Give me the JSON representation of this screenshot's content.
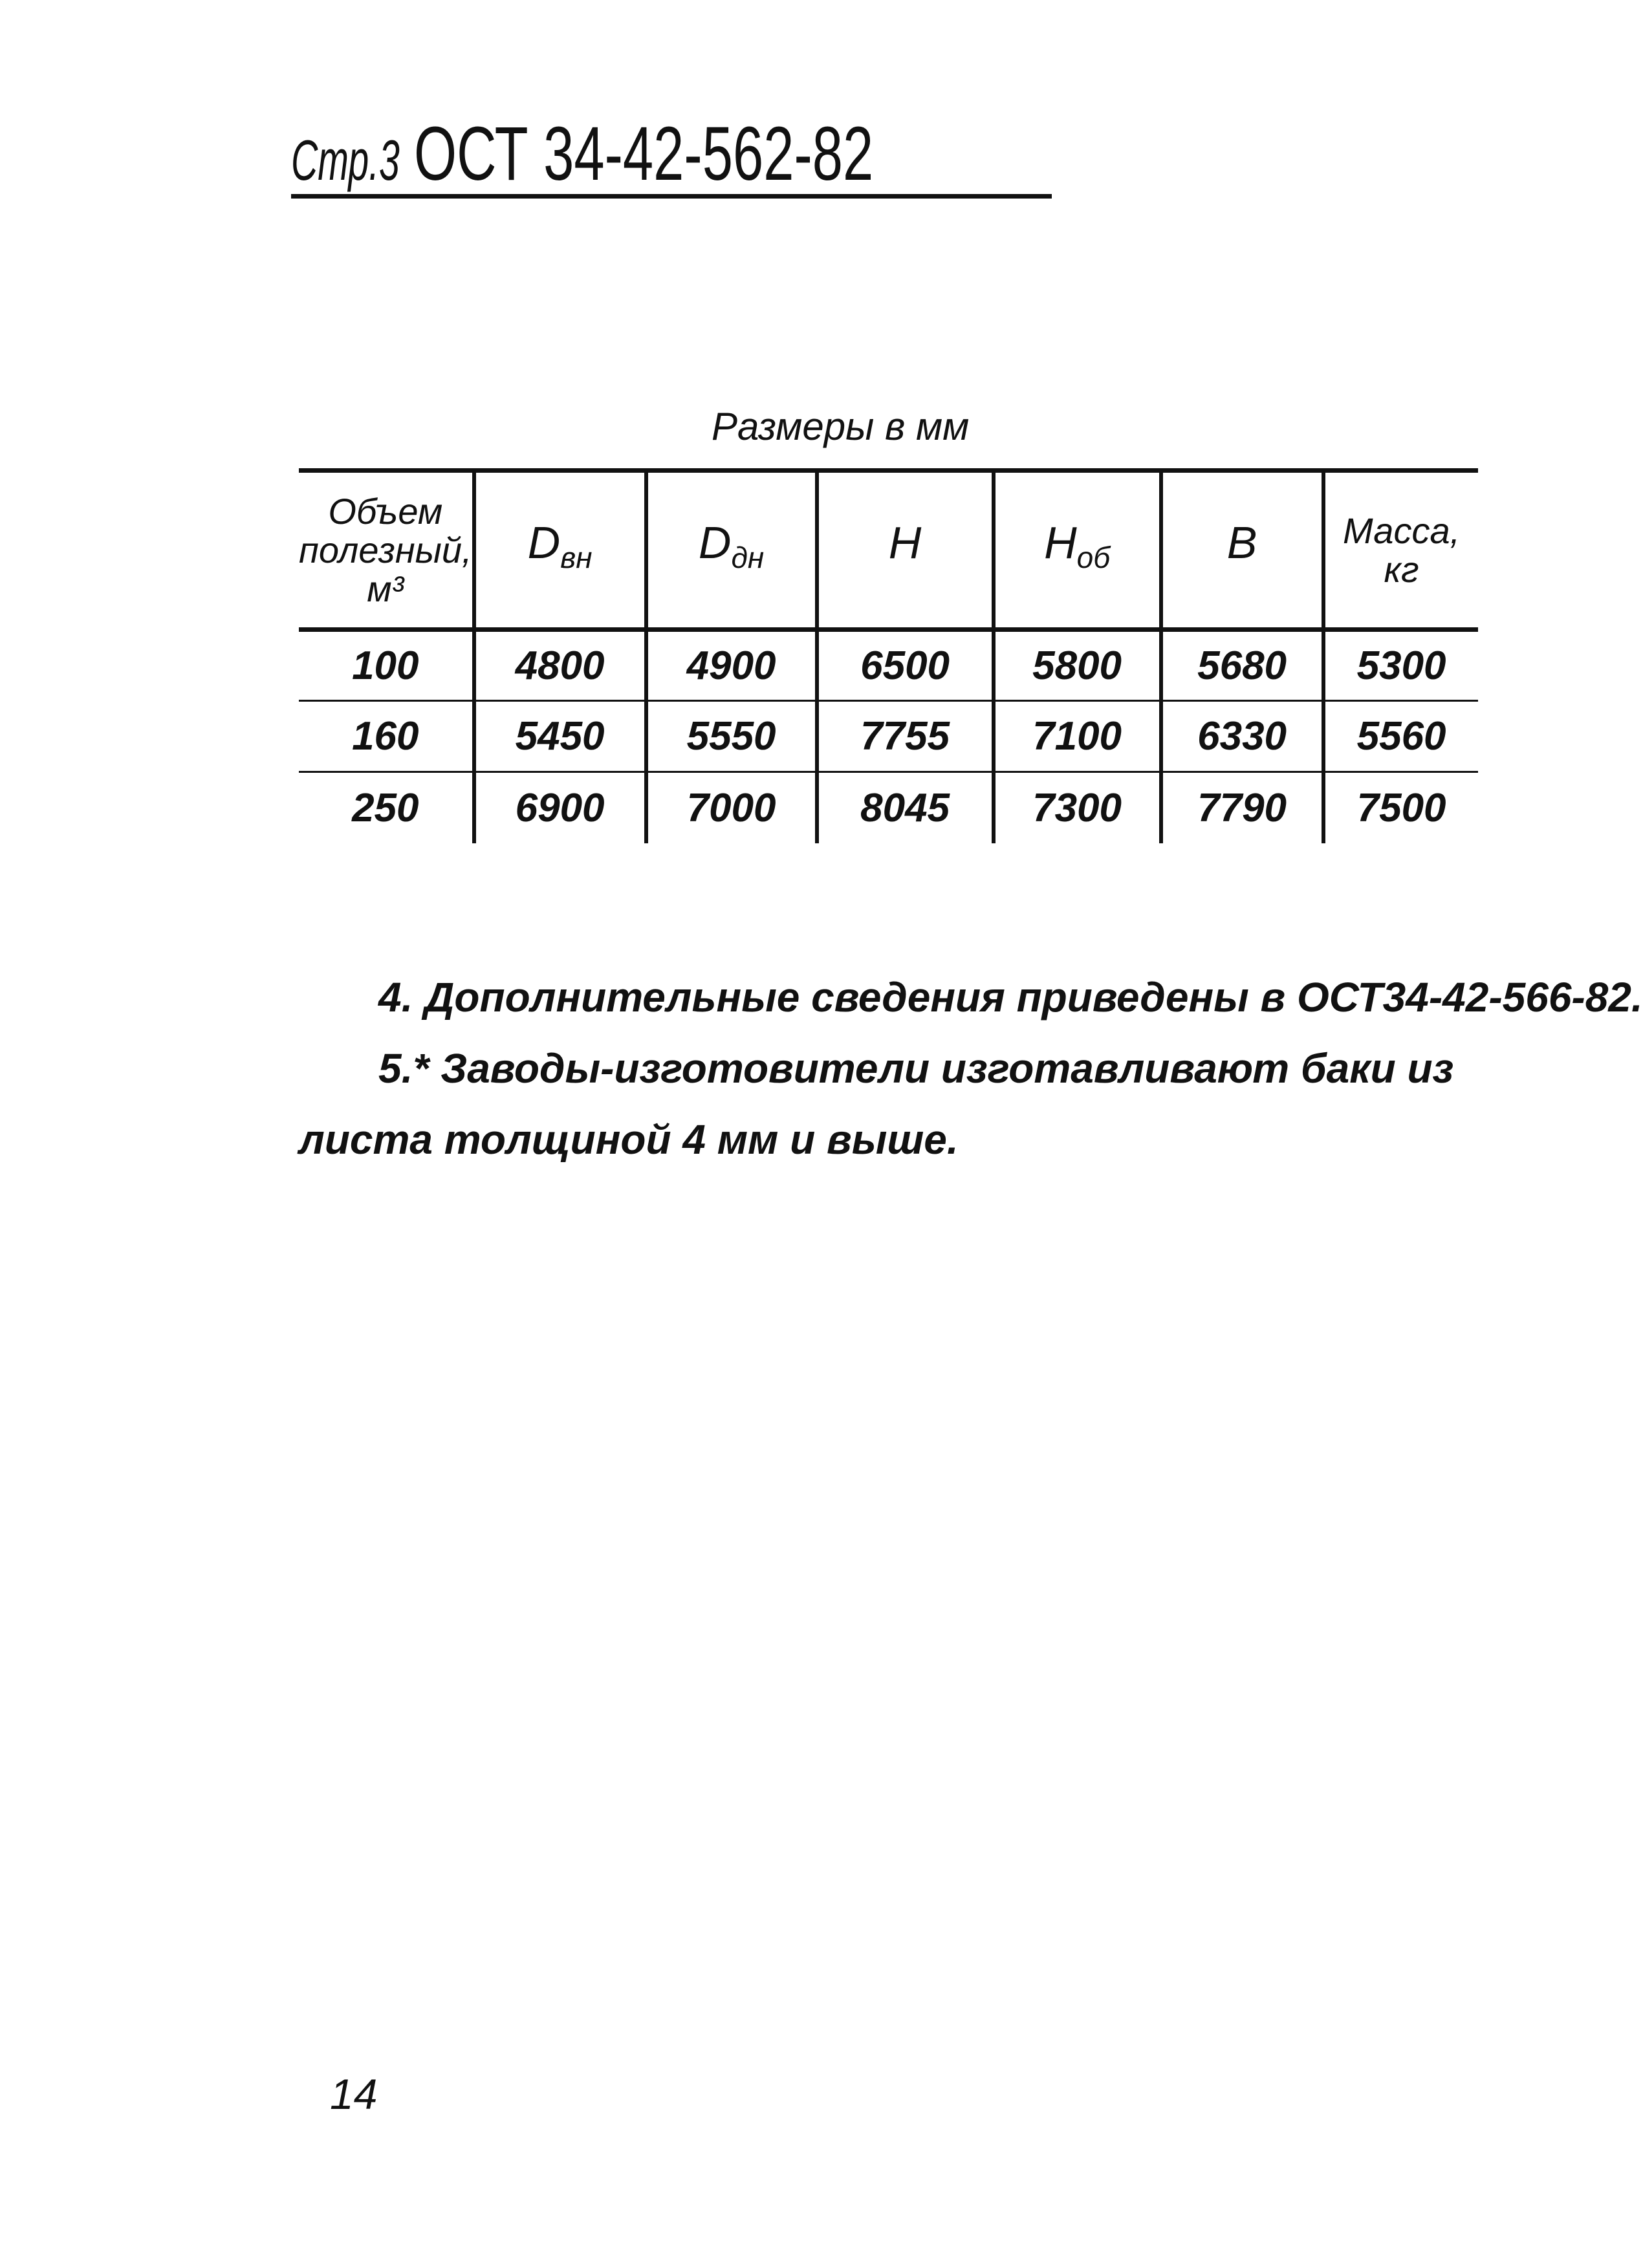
{
  "header": {
    "page_label": "Стр.3",
    "standard_code": "ОСТ 34-42-562-82"
  },
  "table": {
    "units_caption": "Размеры в мм",
    "columns": [
      {
        "label": "Объем полезный, м³"
      },
      {
        "symbol": "D",
        "sub": "вн"
      },
      {
        "symbol": "D",
        "sub": "дн"
      },
      {
        "symbol": "H",
        "sub": ""
      },
      {
        "symbol": "H",
        "sub": "об"
      },
      {
        "symbol": "B",
        "sub": ""
      },
      {
        "label": "Масса, кг"
      }
    ],
    "rows": [
      [
        "100",
        "4800",
        "4900",
        "6500",
        "5800",
        "5680",
        "5300"
      ],
      [
        "160",
        "5450",
        "5550",
        "7755",
        "7100",
        "6330",
        "5560"
      ],
      [
        "250",
        "6900",
        "7000",
        "8045",
        "7300",
        "7790",
        "7500"
      ]
    ]
  },
  "notes": [
    "4. Дополнительные сведения приведены в ОСТ34-42-566-82.",
    "5.* Заводы-изготовители изготавливают баки из",
    "листа толщиной 4 мм и выше."
  ],
  "page_number": "14"
}
